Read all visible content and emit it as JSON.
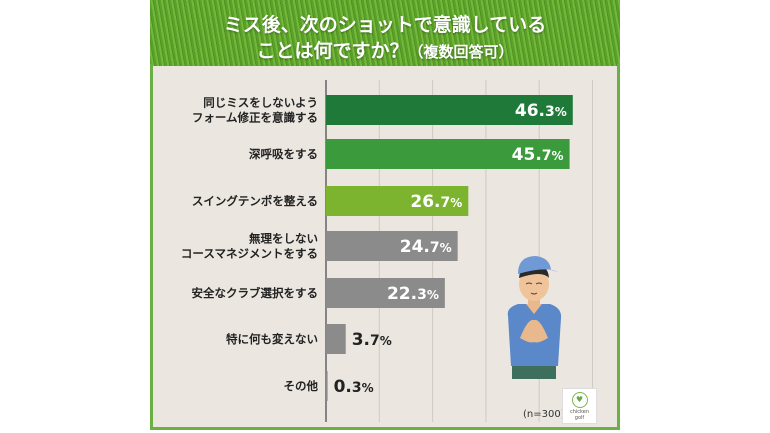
{
  "title_line1": "ミス後、次のショットで意識している",
  "title_line2": "ことは何ですか？",
  "title_note": "（複数回答可）",
  "sample_size": "(n=300)",
  "logo_text": "chicken golf",
  "colors": {
    "dark_green": "#1f7a3a",
    "mid_green": "#3b9a3c",
    "light_green": "#7db42f",
    "gray": "#8b8b8b",
    "grass": "#63a82f"
  },
  "chart_data": {
    "type": "bar",
    "orientation": "horizontal",
    "title": "ミス後、次のショットで意識していることは何ですか？（複数回答可）",
    "unit": "%",
    "xlim": [
      0,
      50
    ],
    "grid": true,
    "categories": [
      [
        "同じミスをしないよう",
        "フォーム修正を意識する"
      ],
      [
        "深呼吸をする"
      ],
      [
        "スイングテンポを整える"
      ],
      [
        "無理をしない",
        "コースマネジメントをする"
      ],
      [
        "安全なクラブ選択をする"
      ],
      [
        "特に何も変えない"
      ],
      [
        "その他"
      ]
    ],
    "values": [
      46.3,
      45.7,
      26.7,
      24.7,
      22.3,
      3.7,
      0.3
    ],
    "bar_colors": [
      "#1f7a3a",
      "#3b9a3c",
      "#7db42f",
      "#8b8b8b",
      "#8b8b8b",
      "#8b8b8b",
      "#8b8b8b"
    ],
    "value_inside": [
      true,
      true,
      true,
      true,
      true,
      false,
      false
    ]
  }
}
